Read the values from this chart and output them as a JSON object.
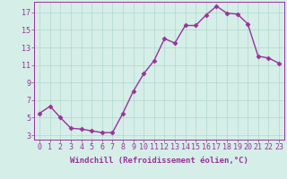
{
  "x": [
    0,
    1,
    2,
    3,
    4,
    5,
    6,
    7,
    8,
    9,
    10,
    11,
    12,
    13,
    14,
    15,
    16,
    17,
    18,
    19,
    20,
    21,
    22,
    23
  ],
  "y": [
    5.5,
    6.3,
    5.0,
    3.8,
    3.7,
    3.5,
    3.3,
    3.3,
    5.5,
    8.0,
    10.0,
    11.5,
    14.0,
    13.5,
    15.5,
    15.5,
    16.7,
    17.7,
    16.9,
    16.8,
    15.7,
    12.0,
    11.8,
    11.2
  ],
  "line_color": "#993399",
  "marker": "D",
  "markersize": 2.5,
  "linewidth": 1.0,
  "bg_color": "#d5eee8",
  "grid_color": "#b0d8cc",
  "xlabel": "Windchill (Refroidissement éolien,°C)",
  "ylabel_ticks": [
    3,
    5,
    7,
    9,
    11,
    13,
    15,
    17
  ],
  "xtick_labels": [
    "0",
    "1",
    "2",
    "3",
    "4",
    "5",
    "6",
    "7",
    "8",
    "9",
    "10",
    "11",
    "12",
    "13",
    "14",
    "15",
    "16",
    "17",
    "18",
    "19",
    "20",
    "21",
    "22",
    "23"
  ],
  "xlim": [
    -0.5,
    23.5
  ],
  "ylim": [
    2.5,
    18.2
  ],
  "font_color": "#993399",
  "fontsize_label": 6.5,
  "fontsize_tick": 6.0
}
